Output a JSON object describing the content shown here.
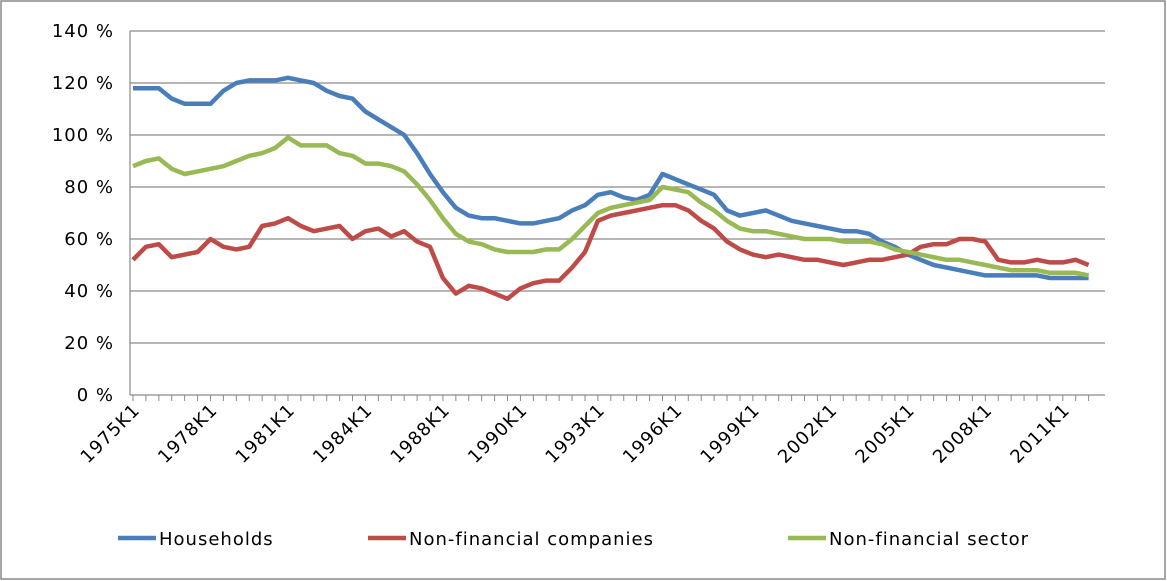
{
  "chart_data": {
    "type": "line",
    "categories": [
      "1975K1",
      null,
      null,
      null,
      null,
      null,
      "1978K1",
      null,
      null,
      null,
      null,
      null,
      "1981K1",
      null,
      null,
      null,
      null,
      null,
      "1984K1",
      null,
      null,
      null,
      null,
      null,
      "1988K1",
      null,
      null,
      null,
      null,
      null,
      "1990K1",
      null,
      null,
      null,
      null,
      null,
      "1993K1",
      null,
      null,
      null,
      null,
      null,
      "1996K1",
      null,
      null,
      null,
      null,
      null,
      "1999K1",
      null,
      null,
      null,
      null,
      null,
      "2002K1",
      null,
      null,
      null,
      null,
      null,
      "2005K1",
      null,
      null,
      null,
      null,
      null,
      "2008K1",
      null,
      null,
      null,
      null,
      null,
      "2011K1",
      null,
      null
    ],
    "series": [
      {
        "name": "Households",
        "color": "#4a7ebb",
        "values": [
          118,
          118,
          118,
          114,
          112,
          112,
          112,
          117,
          120,
          121,
          121,
          121,
          122,
          121,
          120,
          117,
          115,
          114,
          109,
          106,
          103,
          100,
          93,
          85,
          78,
          72,
          69,
          68,
          68,
          67,
          66,
          66,
          67,
          68,
          71,
          73,
          77,
          78,
          76,
          75,
          77,
          85,
          83,
          81,
          79,
          77,
          71,
          69,
          70,
          71,
          69,
          67,
          66,
          65,
          64,
          63,
          63,
          62,
          59,
          57,
          54,
          52,
          50,
          49,
          48,
          47,
          46,
          46,
          46,
          46,
          46,
          45,
          45,
          45,
          45
        ]
      },
      {
        "name": "Non-financial companies",
        "color": "#be4b48",
        "values": [
          52,
          57,
          58,
          53,
          54,
          55,
          60,
          57,
          56,
          57,
          65,
          66,
          68,
          65,
          63,
          64,
          65,
          60,
          63,
          64,
          61,
          63,
          59,
          57,
          45,
          39,
          42,
          41,
          39,
          37,
          41,
          43,
          44,
          44,
          49,
          55,
          67,
          69,
          70,
          71,
          72,
          73,
          73,
          71,
          67,
          64,
          59,
          56,
          54,
          53,
          54,
          53,
          52,
          52,
          51,
          50,
          51,
          52,
          52,
          53,
          54,
          57,
          58,
          58,
          60,
          60,
          59,
          52,
          51,
          51,
          52,
          51,
          51,
          52,
          50
        ]
      },
      {
        "name": "Non-financial sector",
        "color": "#98b954",
        "values": [
          88,
          90,
          91,
          87,
          85,
          86,
          87,
          88,
          90,
          92,
          93,
          95,
          99,
          96,
          96,
          96,
          93,
          92,
          89,
          89,
          88,
          86,
          81,
          75,
          68,
          62,
          59,
          58,
          56,
          55,
          55,
          55,
          56,
          56,
          60,
          65,
          70,
          72,
          73,
          74,
          75,
          80,
          79,
          78,
          74,
          71,
          67,
          64,
          63,
          63,
          62,
          61,
          60,
          60,
          60,
          59,
          59,
          59,
          58,
          56,
          55,
          54,
          53,
          52,
          52,
          51,
          50,
          49,
          48,
          48,
          48,
          47,
          47,
          47,
          46
        ]
      }
    ],
    "ylim": [
      0,
      140
    ],
    "yticks": [
      {
        "value": 0,
        "label": "0 %"
      },
      {
        "value": 20,
        "label": "20 %"
      },
      {
        "value": 40,
        "label": "40 %"
      },
      {
        "value": 60,
        "label": "60 %"
      },
      {
        "value": 80,
        "label": "80 %"
      },
      {
        "value": 100,
        "label": "100 %"
      },
      {
        "value": 120,
        "label": "120 %"
      },
      {
        "value": 140,
        "label": "140 %"
      }
    ],
    "grid": true
  }
}
